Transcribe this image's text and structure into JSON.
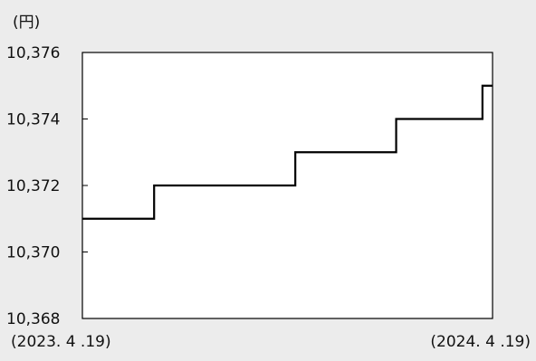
{
  "chart_data": {
    "type": "line",
    "unit_label": "(円)",
    "ylim": [
      10368,
      10376
    ],
    "y_ticks": [
      "10,368",
      "10,370",
      "10,372",
      "10,374",
      "10,376"
    ],
    "y_tick_values": [
      10368,
      10370,
      10372,
      10374,
      10376
    ],
    "x_start_label": "(2023. 4 .19)",
    "x_end_label": "(2024. 4 .19)",
    "x_domain": [
      "2023-04-19",
      "2024-04-19"
    ],
    "grid": false,
    "series": [
      {
        "step": true,
        "x": [
          "2023-04-19",
          "2023-06-22",
          "2023-10-26",
          "2024-01-24",
          "2024-04-10",
          "2024-04-19"
        ],
        "values": [
          10371,
          10372,
          10373,
          10374,
          10375,
          10375
        ]
      }
    ],
    "colors": {
      "background": "#ececec",
      "plot_background": "#ffffff",
      "line": "#000000"
    }
  }
}
